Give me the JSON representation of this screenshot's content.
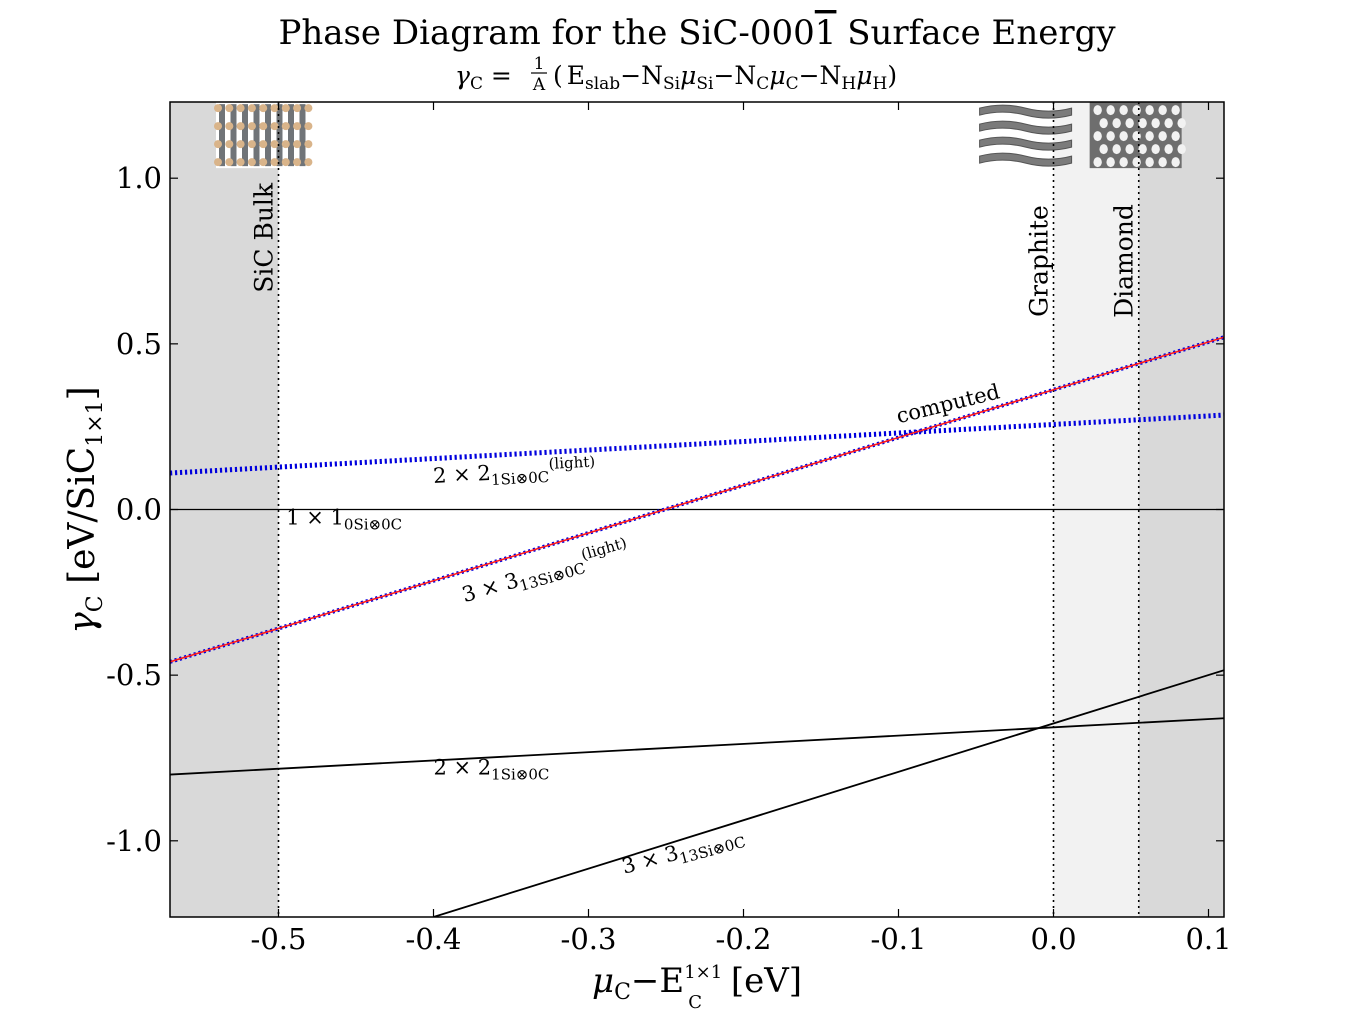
{
  "chart_data": {
    "type": "line",
    "title": "Phase Diagram for the SiC-000",
    "title_bar": "1",
    "title_suffix": " Surface Energy",
    "subtitle": {
      "lhs": "γ",
      "lhs_sub": "C",
      "eq": " = ",
      "frac_num": "1",
      "frac_den": "A",
      "open": "(",
      "t1": "E",
      "t1_sub": "slab",
      "minus1": "−N",
      "t2_sub": "Si",
      "mu2": "μ",
      "mu2_sub": "Si",
      "minus2": "−N",
      "t3_sub": "C",
      "mu3": "μ",
      "mu3_sub": "C",
      "minus3": "−N",
      "t4_sub": "H",
      "mu4": "μ",
      "mu4_sub": "H",
      "close": ")"
    },
    "xlabel": {
      "mu": "μ",
      "mu_sub": "C",
      "rest": "−E",
      "e_sup": "1×1",
      "e_sub": "C",
      "unit": " [eV]"
    },
    "ylabel": {
      "gamma": "γ",
      "gamma_sub": "C",
      "rest": " [eV/SiC",
      "sub": "1×1",
      "close": "]"
    },
    "xlim": [
      -0.57,
      0.11
    ],
    "ylim": [
      -1.23,
      1.23
    ],
    "xticks": [
      {
        "value": -0.5,
        "label": "-0.5"
      },
      {
        "value": -0.4,
        "label": "-0.4"
      },
      {
        "value": -0.3,
        "label": "-0.3"
      },
      {
        "value": -0.2,
        "label": "-0.2"
      },
      {
        "value": -0.1,
        "label": "-0.1"
      },
      {
        "value": 0.0,
        "label": "0.0"
      },
      {
        "value": 0.1,
        "label": "0.1"
      }
    ],
    "yticks": [
      {
        "value": 1.0,
        "label": "1.0"
      },
      {
        "value": 0.5,
        "label": "0.5"
      },
      {
        "value": 0.0,
        "label": "0.0"
      },
      {
        "value": -0.5,
        "label": "-0.5"
      },
      {
        "value": -1.0,
        "label": "-1.0"
      }
    ],
    "regions": [
      {
        "x": [
          -0.57,
          -0.5
        ],
        "color": "#d9d9d9"
      },
      {
        "x": [
          0.0,
          0.055
        ],
        "color": "#f2f2f2"
      },
      {
        "x": [
          0.055,
          0.11
        ],
        "color": "#d9d9d9"
      }
    ],
    "vlines": [
      {
        "x": -0.5,
        "label": "SiC Bulk",
        "label_y": 0.82
      },
      {
        "x": 0.0,
        "label": "Graphite",
        "label_y": 0.75
      },
      {
        "x": 0.055,
        "label": "Diamond",
        "label_y": 0.75
      }
    ],
    "series": [
      {
        "x": [
          -0.57,
          0.11
        ],
        "y": [
          0.0,
          0.0
        ],
        "color": "#000000",
        "style": "solid",
        "width": 1.3
      },
      {
        "x": [
          -0.57,
          0.11
        ],
        "y": [
          -0.8,
          -0.63
        ],
        "color": "#000000",
        "style": "solid",
        "width": 1.8
      },
      {
        "x": [
          -0.4,
          0.11
        ],
        "y": [
          -1.23,
          -0.485
        ],
        "color": "#000000",
        "style": "solid",
        "width": 1.8
      },
      {
        "x": [
          -0.57,
          0.11
        ],
        "y": [
          0.11,
          0.285
        ],
        "color": "#0000dd",
        "style": "dotted",
        "width": 5
      },
      {
        "x": [
          -0.57,
          0.11
        ],
        "y": [
          -0.46,
          0.52
        ],
        "color": "#0000dd",
        "style": "dotted",
        "width": 4
      },
      {
        "x": [
          -0.57,
          0.11
        ],
        "y": [
          -0.46,
          0.52
        ],
        "color": "#ff1a1a",
        "style": "solid",
        "width": 1.6
      }
    ],
    "annotations": [
      {
        "base": "1 × 1",
        "sub": "0Si⊗0C",
        "sup": "",
        "x": -0.495,
        "y": -0.045,
        "rotate": 0
      },
      {
        "base": "2 × 2",
        "sub": "1Si⊗0C",
        "sup": "(light)",
        "x": -0.4,
        "y": 0.08,
        "rotate": -3
      },
      {
        "base": "3 × 3",
        "sub": "13Si⊗0C",
        "sup": "(light)",
        "x": -0.38,
        "y": -0.28,
        "rotate": -16
      },
      {
        "base": "2 × 2",
        "sub": "1Si⊗0C",
        "sup": "",
        "x": -0.4,
        "y": -0.8,
        "rotate": 0
      },
      {
        "base": "3 × 3",
        "sub": "13Si⊗0C",
        "sup": "",
        "x": -0.277,
        "y": -1.1,
        "rotate": -15
      },
      {
        "base": "computed",
        "sub": "",
        "sup": "",
        "x": -0.1,
        "y": 0.26,
        "rotate": -14
      }
    ],
    "insets": [
      {
        "name": "sic-bulk-structure",
        "kind": "sic",
        "x": -0.51,
        "y": 1.13
      },
      {
        "name": "graphite-structure",
        "kind": "graphite",
        "x": -0.018,
        "y": 1.13
      },
      {
        "name": "diamond-structure",
        "kind": "diamond",
        "x": 0.053,
        "y": 1.13
      }
    ]
  }
}
